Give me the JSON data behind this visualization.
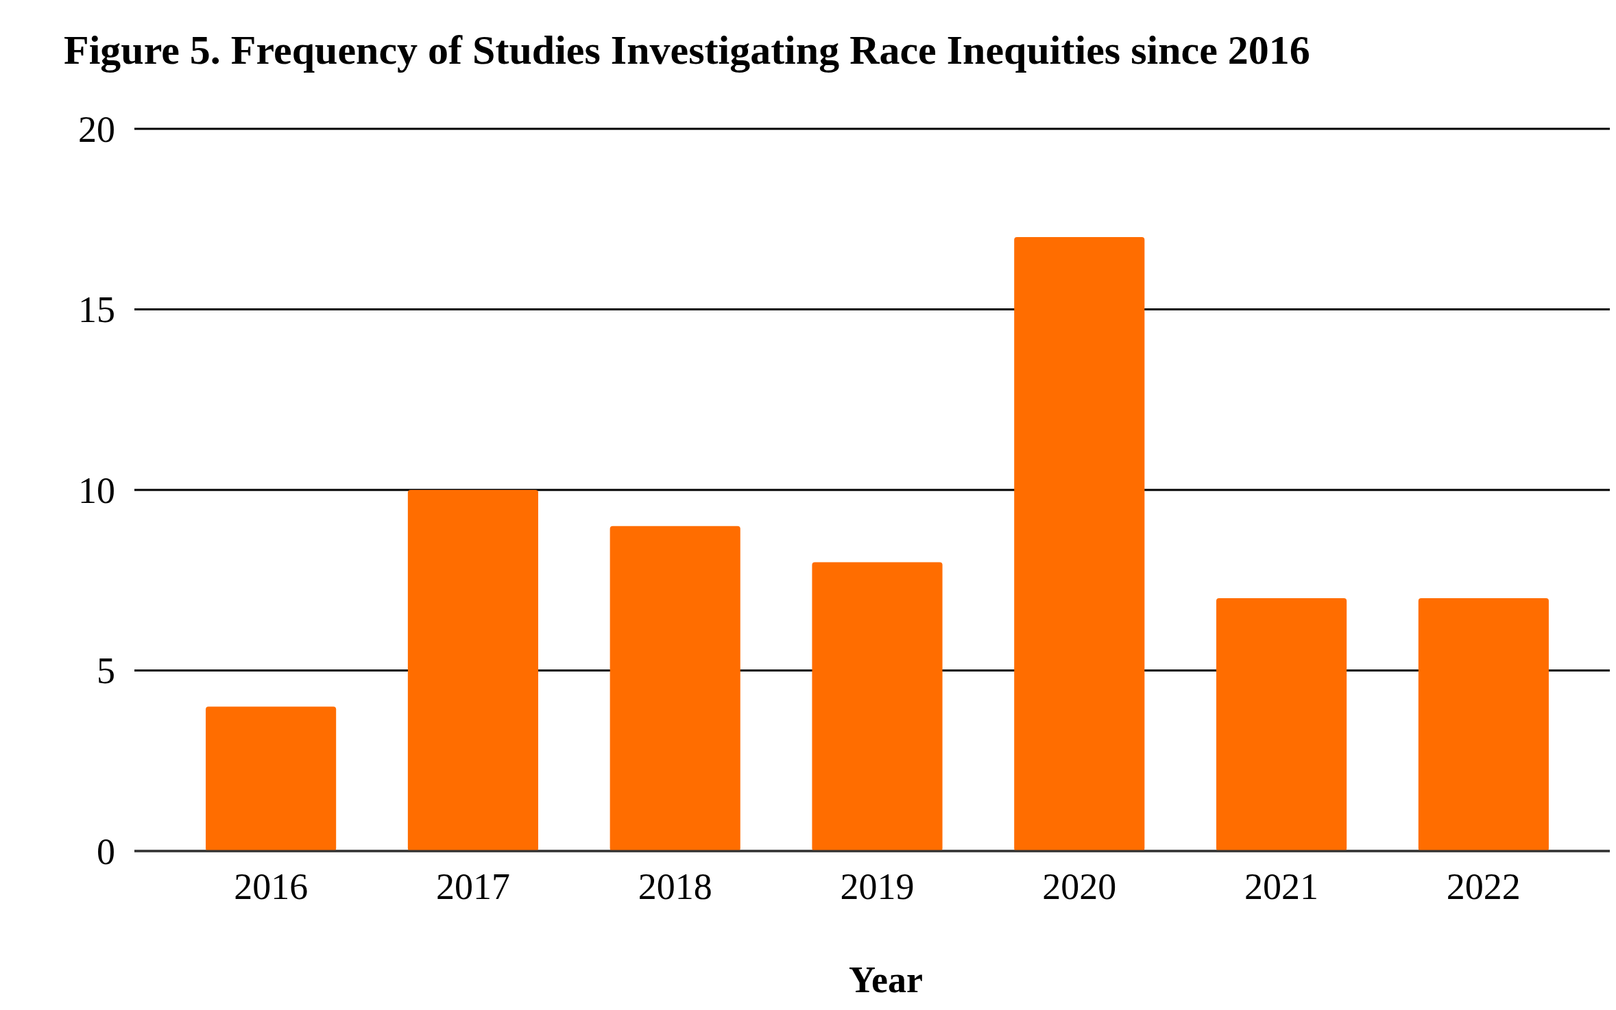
{
  "chart_data": {
    "type": "bar",
    "title": "Figure 5. Frequency of Studies Investigating Race Inequities since 2016",
    "xlabel": "Year",
    "categories": [
      "2016",
      "2017",
      "2018",
      "2019",
      "2020",
      "2021",
      "2022"
    ],
    "values": [
      4,
      10,
      9,
      8,
      17,
      7,
      7
    ],
    "color": "#ff6d00",
    "ylim": [
      0,
      20
    ],
    "yticks": [
      0,
      5,
      10,
      15,
      20
    ],
    "grid": true
  }
}
